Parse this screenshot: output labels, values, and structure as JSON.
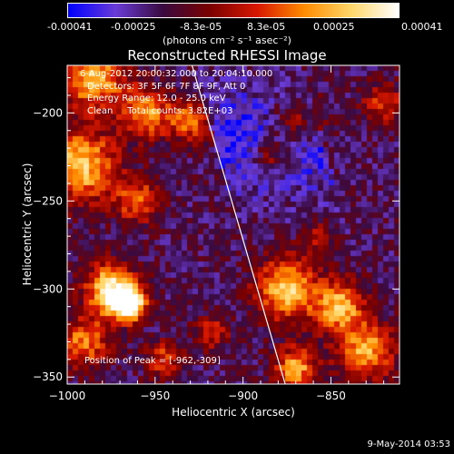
{
  "colorbar": {
    "ticks": [
      "-0.00041",
      "-0.00025",
      "-8.3e-05",
      "8.3e-05",
      "0.00025",
      "0.00041"
    ],
    "unit": "(photons cm⁻² s⁻¹ asec⁻²)"
  },
  "title": "Reconstructed RHESSI Image",
  "info_lines": [
    "6-Aug-2012 20:00:32.000 to 20:04:10.000",
    "Detectors: 3F 5F 6F 7F 8F 9F, Att 0",
    "Energy Range: 12.0 - 25.0 keV",
    "Clean     Total counts: 3.82E+03"
  ],
  "peak_text": "Position of Peak = [-962,-309]",
  "footer_date": "9-May-2014 03:53",
  "chart_data": {
    "type": "heatmap",
    "title": "Reconstructed RHESSI Image",
    "xlabel": "Heliocentric X (arcsec)",
    "ylabel": "Heliocentric Y (arcsec)",
    "xlim": [
      -1000,
      -811
    ],
    "ylim": [
      -354,
      -173
    ],
    "xticks": [
      -1000,
      -950,
      -900,
      -850
    ],
    "yticks": [
      -350,
      -300,
      -250,
      -200
    ],
    "xtick_labels": [
      "−1000",
      "−950",
      "−900",
      "−850"
    ],
    "ytick_labels": [
      "−350",
      "−300",
      "−250",
      "−200"
    ],
    "colorbar_range": [
      -0.00041,
      0.00041
    ],
    "peak_position": [
      -962,
      -309
    ],
    "limb_line": [
      [
        -929,
        -173
      ],
      [
        -876,
        -354
      ]
    ],
    "colormap": [
      "#0000ff",
      "#6a3cd6",
      "#3a0a40",
      "#7a0000",
      "#d81800",
      "#ff8c00",
      "#ffd76a",
      "#ffffff"
    ],
    "grid": false
  }
}
